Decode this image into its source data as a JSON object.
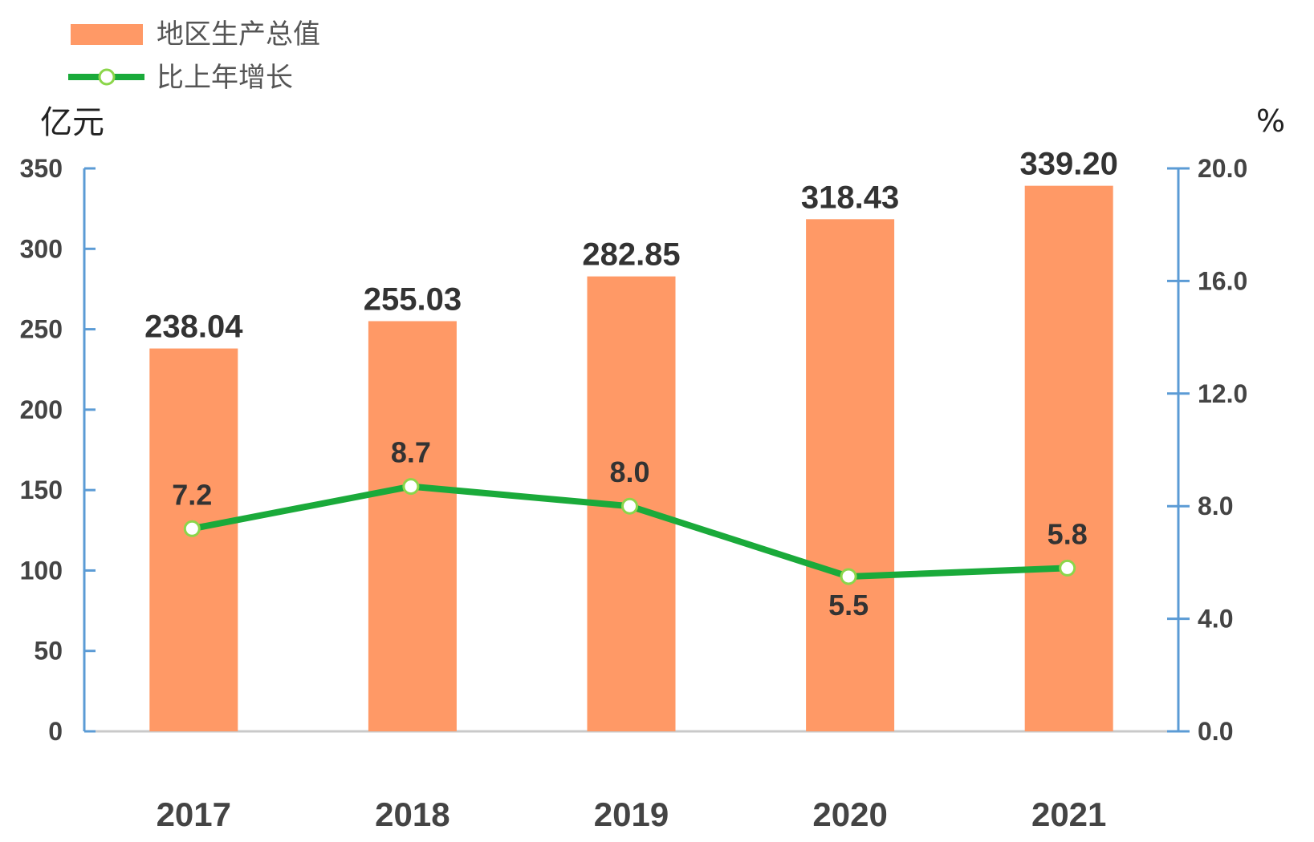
{
  "chart_data": {
    "type": "bar",
    "categories": [
      "2017",
      "2018",
      "2019",
      "2020",
      "2021"
    ],
    "series": [
      {
        "name": "地区生产总值",
        "type": "bar",
        "axis": "left",
        "color": "#FF9966",
        "values": [
          238.04,
          255.03,
          282.85,
          318.43,
          339.2
        ],
        "labels": [
          "238.04",
          "255.03",
          "282.85",
          "318.43",
          "339.20"
        ]
      },
      {
        "name": "比上年增长",
        "type": "line",
        "axis": "right",
        "color": "#1AAA3A",
        "values": [
          7.2,
          8.7,
          8.0,
          5.5,
          5.8
        ],
        "labels": [
          "7.2",
          "8.7",
          "8.0",
          "5.5",
          "5.8"
        ]
      }
    ],
    "y_left": {
      "unit": "亿元",
      "ylim": [
        0,
        350
      ],
      "ticks": [
        "0",
        "50",
        "100",
        "150",
        "200",
        "250",
        "300",
        "350"
      ]
    },
    "y_right": {
      "unit": "%",
      "ylim": [
        0,
        20
      ],
      "ticks": [
        "0.0",
        "4.0",
        "8.0",
        "12.0",
        "16.0",
        "20.0"
      ]
    },
    "axis_color": "#5B9BD5",
    "legend_position": "top-left",
    "grid": false
  }
}
